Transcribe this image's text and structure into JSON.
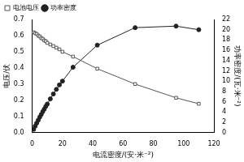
{
  "chart_data": {
    "type": "scatter",
    "x_label": "电流密度/(安·米⁻²)",
    "y_label": "电压/伏",
    "y2_label": "功率密度/(瓦·米⁻²)",
    "x": [
      1,
      2,
      3,
      4,
      5,
      6,
      7,
      8,
      9,
      10,
      12,
      14,
      16,
      18,
      20,
      27,
      43,
      68,
      95,
      110
    ],
    "series": [
      {
        "name": "电池电压",
        "color": "#555555",
        "marker": "open_square",
        "line_style": "solid",
        "values": [
          0.62,
          0.615,
          0.61,
          0.6,
          0.595,
          0.585,
          0.58,
          0.57,
          0.565,
          0.555,
          0.545,
          0.535,
          0.525,
          0.515,
          0.5,
          0.47,
          0.395,
          0.3,
          0.215,
          0.178
        ]
      },
      {
        "name": "功率密度",
        "color": "#222222",
        "marker": "circle",
        "line_style": "solid",
        "axis": "y2",
        "values": [
          0.62,
          1.23,
          1.83,
          2.4,
          2.98,
          3.51,
          4.06,
          4.56,
          5.09,
          5.55,
          6.54,
          7.49,
          8.4,
          9.27,
          10,
          12.7,
          17,
          20.4,
          20.7,
          20
        ]
      }
    ],
    "xlim": [
      0,
      120
    ],
    "xticks": [
      0,
      20,
      40,
      60,
      80,
      100,
      120
    ],
    "ylim": [
      0,
      0.7
    ],
    "yticks": [
      {
        "value": 0,
        "label": "0.0"
      },
      0.1,
      0.2,
      0.3,
      0.4,
      0.5,
      0.6,
      0.7
    ],
    "y2lim": [
      0,
      22
    ],
    "y2ticks": [
      0,
      2,
      4,
      6,
      8,
      10,
      12,
      14,
      16,
      18,
      20,
      22
    ],
    "grid": false,
    "legend": "upper left"
  }
}
